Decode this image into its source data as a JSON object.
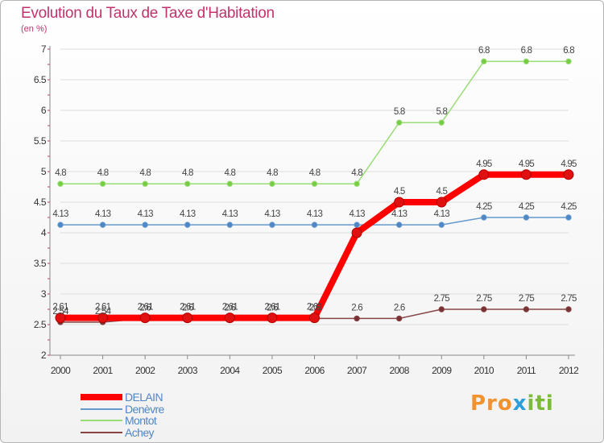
{
  "header": {
    "title": "Evolution du Taux de Taxe d'Habitation",
    "unit": "(en %)"
  },
  "brand": {
    "text_a": "Pro",
    "text_b": "x",
    "text_c": "iti"
  },
  "chart_data": {
    "type": "line",
    "title": "Evolution du Taux de Taxe d'Habitation",
    "ylabel": "(en %)",
    "xlabel": "",
    "categories": [
      "2000",
      "2001",
      "2002",
      "2003",
      "2004",
      "2005",
      "2006",
      "2007",
      "2008",
      "2009",
      "2010",
      "2011",
      "2012"
    ],
    "ylim": [
      2,
      7
    ],
    "yticks": [
      "2",
      "2.5",
      "3",
      "3.5",
      "4",
      "4.5",
      "5",
      "5.5",
      "6",
      "6.5",
      "7"
    ],
    "legend_position": "bottom-left",
    "series": [
      {
        "name": "DELAIN",
        "color": "#ff0000",
        "point_fill": "#e01010",
        "label_color": "#444444",
        "values": [
          2.61,
          2.61,
          2.61,
          2.61,
          2.61,
          2.61,
          2.61,
          4.0,
          4.5,
          4.5,
          4.95,
          4.95,
          4.95
        ],
        "labels": [
          "2.61",
          "2.61",
          "2.61",
          "2.61",
          "2.61",
          "2.61",
          "2.61",
          "",
          "4.5",
          "4.5",
          "4.95",
          "4.95",
          "4.95"
        ]
      },
      {
        "name": "Denèvre",
        "color": "#6699cc",
        "point_fill": "#4f86c6",
        "label_color": "#444444",
        "values": [
          4.13,
          4.13,
          4.13,
          4.13,
          4.13,
          4.13,
          4.13,
          4.13,
          4.13,
          4.13,
          4.25,
          4.25,
          4.25
        ],
        "labels": [
          "4.13",
          "4.13",
          "4.13",
          "4.13",
          "4.13",
          "4.13",
          "4.13",
          "4.13",
          "4.13",
          "4.13",
          "4.25",
          "4.25",
          "4.25"
        ]
      },
      {
        "name": "Montot",
        "color": "#99dd77",
        "point_fill": "#77cc44",
        "label_color": "#444444",
        "values": [
          4.8,
          4.8,
          4.8,
          4.8,
          4.8,
          4.8,
          4.8,
          4.8,
          5.8,
          5.8,
          6.8,
          6.8,
          6.8
        ],
        "labels": [
          "4.8",
          "4.8",
          "4.8",
          "4.8",
          "4.8",
          "4.8",
          "4.8",
          "4.8",
          "5.8",
          "5.8",
          "6.8",
          "6.8",
          "6.8"
        ]
      },
      {
        "name": "Achey",
        "color": "#884444",
        "point_fill": "#773333",
        "label_color": "#444444",
        "values": [
          2.54,
          2.54,
          2.6,
          2.6,
          2.6,
          2.6,
          2.6,
          2.6,
          2.6,
          2.75,
          2.75,
          2.75,
          2.75
        ],
        "labels": [
          "2.54",
          "2.54",
          "2.6",
          "2.6",
          "2.6",
          "2.6",
          "2.6",
          "2.6",
          "2.6",
          "2.75",
          "2.75",
          "2.75",
          "2.75"
        ]
      }
    ]
  }
}
